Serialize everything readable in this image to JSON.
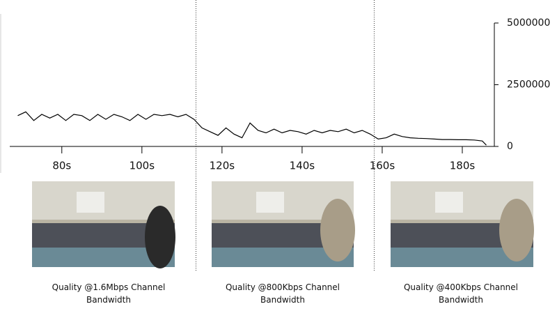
{
  "chart_data": {
    "type": "line",
    "x": [
      69,
      71,
      73,
      75,
      77,
      79,
      81,
      83,
      85,
      87,
      89,
      91,
      93,
      95,
      97,
      99,
      101,
      103,
      105,
      107,
      109,
      111,
      113,
      115,
      117,
      119,
      121,
      123,
      125,
      127,
      129,
      131,
      133,
      135,
      137,
      139,
      141,
      143,
      145,
      147,
      149,
      151,
      153,
      155,
      157,
      159,
      161,
      163,
      165,
      167,
      169,
      171,
      173,
      175,
      177,
      179,
      181,
      183,
      185,
      186
    ],
    "values": [
      1250000,
      1400000,
      1050000,
      1300000,
      1150000,
      1300000,
      1050000,
      1300000,
      1250000,
      1050000,
      1300000,
      1100000,
      1300000,
      1200000,
      1050000,
      1300000,
      1100000,
      1300000,
      1250000,
      1300000,
      1200000,
      1300000,
      1100000,
      750000,
      600000,
      450000,
      750000,
      500000,
      350000,
      950000,
      650000,
      550000,
      700000,
      550000,
      650000,
      600000,
      500000,
      650000,
      550000,
      650000,
      600000,
      700000,
      550000,
      650000,
      500000,
      300000,
      350000,
      500000,
      400000,
      350000,
      330000,
      320000,
      300000,
      280000,
      280000,
      270000,
      270000,
      260000,
      220000,
      50000
    ],
    "color": "#000000",
    "xlim": [
      67,
      188
    ],
    "ylim": [
      0,
      5000000
    ],
    "xticks": [
      {
        "value": 80,
        "label": "80s"
      },
      {
        "value": 100,
        "label": "100s"
      },
      {
        "value": 120,
        "label": "120s"
      },
      {
        "value": 140,
        "label": "140s"
      },
      {
        "value": 160,
        "label": "160s"
      },
      {
        "value": 180,
        "label": "180s"
      }
    ],
    "yticks": [
      0,
      2500000,
      5000000
    ],
    "yaxis_side": "right",
    "vlines": [
      113.5,
      158
    ]
  },
  "panels": [
    {
      "caption": "Quality @1.6Mbps Channel Bandwidth"
    },
    {
      "caption": "Quality @800Kbps Channel Bandwidth"
    },
    {
      "caption": "Quality @400Kbps Channel Bandwidth"
    }
  ]
}
